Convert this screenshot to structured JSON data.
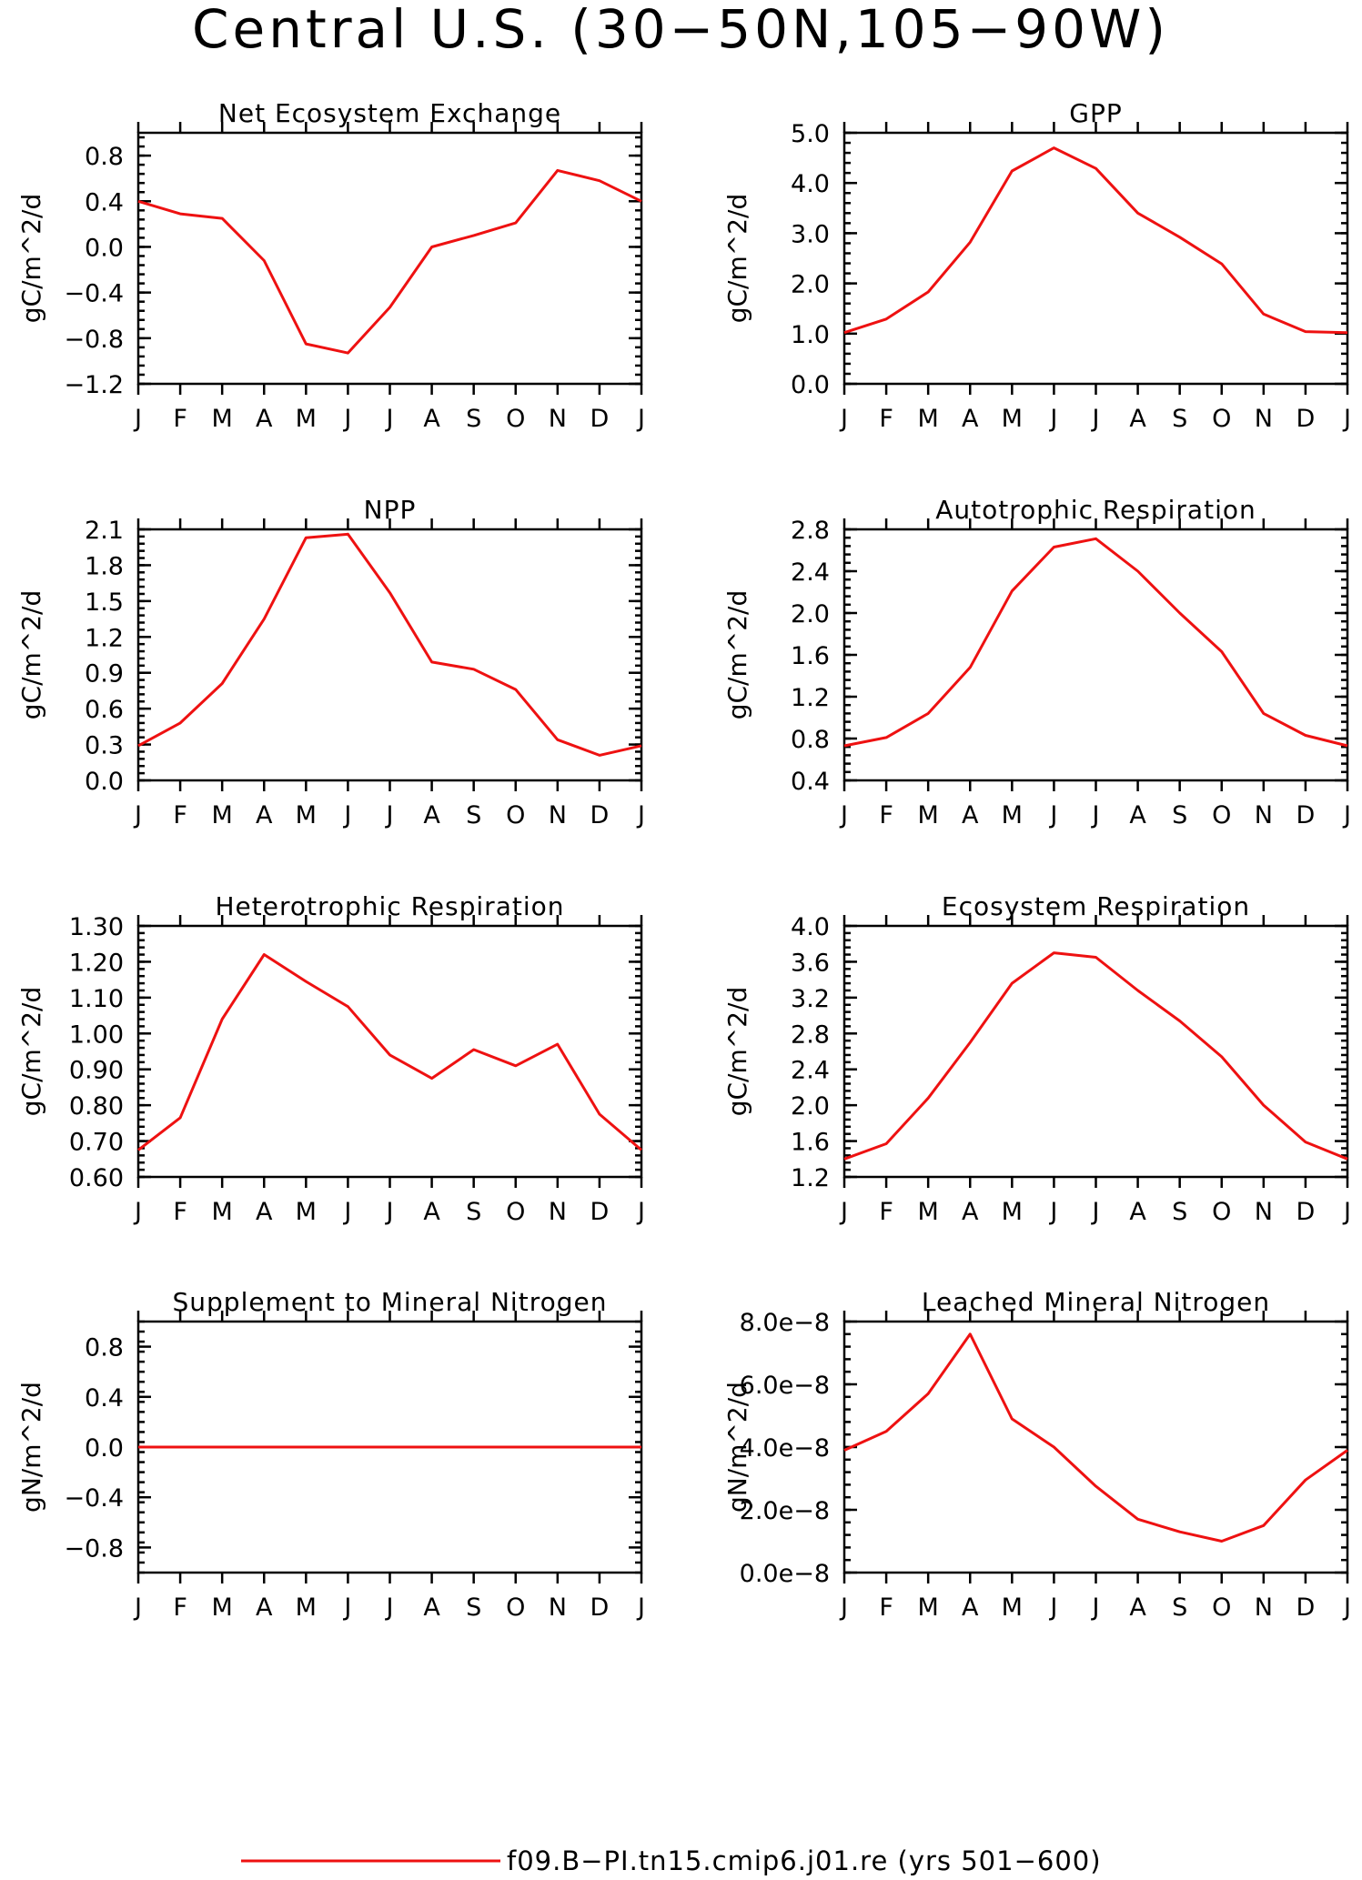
{
  "figure": {
    "title": "Central U.S. (30−50N,105−90W)",
    "series_color": "#ee1111"
  },
  "legend": {
    "label": "f09.B−PI.tn15.cmip6.j01.re (yrs 501−600)"
  },
  "chart_data": [
    {
      "type": "line",
      "title": "Net Ecosystem Exchange",
      "ylabel": "gC/m^2/d",
      "xlabel": "",
      "categories": [
        "J",
        "F",
        "M",
        "A",
        "M",
        "J",
        "J",
        "A",
        "S",
        "O",
        "N",
        "D",
        "J"
      ],
      "ylim": [
        -1.2,
        1.0
      ],
      "yticks": [
        -1.2,
        -0.8,
        -0.4,
        0.0,
        0.4,
        0.8
      ],
      "ytick_labels": [
        "−1.2",
        "−0.8",
        "−0.4",
        "0.0",
        "0.4",
        "0.8"
      ],
      "series": [
        {
          "values": [
            0.4,
            0.29,
            0.25,
            -0.12,
            -0.85,
            -0.93,
            -0.53,
            0.0,
            0.1,
            0.21,
            0.67,
            0.58,
            0.4
          ]
        }
      ]
    },
    {
      "type": "line",
      "title": "GPP",
      "ylabel": "gC/m^2/d",
      "xlabel": "",
      "categories": [
        "J",
        "F",
        "M",
        "A",
        "M",
        "J",
        "J",
        "A",
        "S",
        "O",
        "N",
        "D",
        "J"
      ],
      "ylim": [
        0.0,
        5.0
      ],
      "yticks": [
        0.0,
        1.0,
        2.0,
        3.0,
        4.0,
        5.0
      ],
      "ytick_labels": [
        "0.0",
        "1.0",
        "2.0",
        "3.0",
        "4.0",
        "5.0"
      ],
      "series": [
        {
          "values": [
            1.02,
            1.29,
            1.83,
            2.82,
            4.24,
            4.7,
            4.29,
            3.4,
            2.92,
            2.39,
            1.39,
            1.04,
            1.02
          ]
        }
      ]
    },
    {
      "type": "line",
      "title": "NPP",
      "ylabel": "gC/m^2/d",
      "xlabel": "",
      "categories": [
        "J",
        "F",
        "M",
        "A",
        "M",
        "J",
        "J",
        "A",
        "S",
        "O",
        "N",
        "D",
        "J"
      ],
      "ylim": [
        0.0,
        2.1
      ],
      "yticks": [
        0.0,
        0.3,
        0.6,
        0.9,
        1.2,
        1.5,
        1.8,
        2.1
      ],
      "ytick_labels": [
        "0.0",
        "0.3",
        "0.6",
        "0.9",
        "1.2",
        "1.5",
        "1.8",
        "2.1"
      ],
      "series": [
        {
          "values": [
            0.29,
            0.48,
            0.81,
            1.35,
            2.03,
            2.06,
            1.57,
            0.99,
            0.93,
            0.76,
            0.34,
            0.21,
            0.29
          ]
        }
      ]
    },
    {
      "type": "line",
      "title": "Autotrophic Respiration",
      "ylabel": "gC/m^2/d",
      "xlabel": "",
      "categories": [
        "J",
        "F",
        "M",
        "A",
        "M",
        "J",
        "J",
        "A",
        "S",
        "O",
        "N",
        "D",
        "J"
      ],
      "ylim": [
        0.4,
        2.8
      ],
      "yticks": [
        0.4,
        0.8,
        1.2,
        1.6,
        2.0,
        2.4,
        2.8
      ],
      "ytick_labels": [
        "0.4",
        "0.8",
        "1.2",
        "1.6",
        "2.0",
        "2.4",
        "2.8"
      ],
      "series": [
        {
          "values": [
            0.73,
            0.81,
            1.04,
            1.48,
            2.21,
            2.63,
            2.71,
            2.4,
            2.0,
            1.63,
            1.04,
            0.83,
            0.73
          ]
        }
      ]
    },
    {
      "type": "line",
      "title": "Heterotrophic Respiration",
      "ylabel": "gC/m^2/d",
      "xlabel": "",
      "categories": [
        "J",
        "F",
        "M",
        "A",
        "M",
        "J",
        "J",
        "A",
        "S",
        "O",
        "N",
        "D",
        "J"
      ],
      "ylim": [
        0.6,
        1.3
      ],
      "yticks": [
        0.6,
        0.7,
        0.8,
        0.9,
        1.0,
        1.1,
        1.2,
        1.3
      ],
      "ytick_labels": [
        "0.60",
        "0.70",
        "0.80",
        "0.90",
        "1.00",
        "1.10",
        "1.20",
        "1.30"
      ],
      "series": [
        {
          "values": [
            0.675,
            0.765,
            1.04,
            1.22,
            1.145,
            1.075,
            0.94,
            0.875,
            0.955,
            0.91,
            0.97,
            0.775,
            0.675
          ]
        }
      ]
    },
    {
      "type": "line",
      "title": "Ecosystem Respiration",
      "ylabel": "gC/m^2/d",
      "xlabel": "",
      "categories": [
        "J",
        "F",
        "M",
        "A",
        "M",
        "J",
        "J",
        "A",
        "S",
        "O",
        "N",
        "D",
        "J"
      ],
      "ylim": [
        1.2,
        4.0
      ],
      "yticks": [
        1.2,
        1.6,
        2.0,
        2.4,
        2.8,
        3.2,
        3.6,
        4.0
      ],
      "ytick_labels": [
        "1.2",
        "1.6",
        "2.0",
        "2.4",
        "2.8",
        "3.2",
        "3.6",
        "4.0"
      ],
      "series": [
        {
          "values": [
            1.4,
            1.57,
            2.08,
            2.7,
            3.36,
            3.7,
            3.65,
            3.28,
            2.94,
            2.54,
            2.0,
            1.59,
            1.4
          ]
        }
      ]
    },
    {
      "type": "line",
      "title": "Supplement to Mineral Nitrogen",
      "ylabel": "gN/m^2/d",
      "xlabel": "",
      "categories": [
        "J",
        "F",
        "M",
        "A",
        "M",
        "J",
        "J",
        "A",
        "S",
        "O",
        "N",
        "D",
        "J"
      ],
      "ylim": [
        -1.0,
        1.0
      ],
      "yticks": [
        -0.8,
        -0.4,
        0.0,
        0.4,
        0.8
      ],
      "ytick_labels": [
        "−0.8",
        "−0.4",
        "0.0",
        "0.4",
        "0.8"
      ],
      "series": [
        {
          "values": [
            0,
            0,
            0,
            0,
            0,
            0,
            0,
            0,
            0,
            0,
            0,
            0,
            0
          ]
        }
      ]
    },
    {
      "type": "line",
      "title": "Leached Mineral Nitrogen",
      "ylabel": "gN/m^2/d",
      "xlabel": "",
      "categories": [
        "J",
        "F",
        "M",
        "A",
        "M",
        "J",
        "J",
        "A",
        "S",
        "O",
        "N",
        "D",
        "J"
      ],
      "ylim": [
        0,
        8e-08
      ],
      "yticks": [
        0,
        2e-08,
        4e-08,
        6e-08,
        8e-08
      ],
      "ytick_labels": [
        "0.0e−8",
        "2.0e−8",
        "4.0e−8",
        "6.0e−8",
        "8.0e−8"
      ],
      "series": [
        {
          "values": [
            3.9e-08,
            4.5e-08,
            5.7e-08,
            7.6e-08,
            4.9e-08,
            4e-08,
            2.75e-08,
            1.7e-08,
            1.3e-08,
            1e-08,
            1.5e-08,
            2.95e-08,
            3.9e-08
          ]
        }
      ]
    }
  ]
}
